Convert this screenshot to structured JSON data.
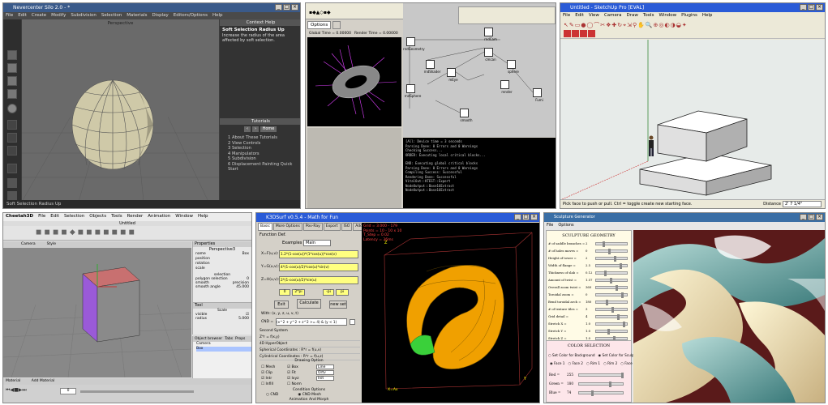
{
  "silo": {
    "title": "Nevercenter Silo 2.0 - *",
    "menu": [
      "File",
      "Edit",
      "Create",
      "Modify",
      "Subdivision",
      "Selection",
      "Materials",
      "Display",
      "Editors/Options",
      "Help"
    ],
    "viewport_label": "Perspective",
    "context_help_title": "Context Help",
    "context_help_heading": "Soft Selection Radius Up",
    "context_help_body": "Increase the radius of the area affected by soft selection.",
    "tutorials_title": "Tutorials",
    "home_button": "Home",
    "tutorials": [
      "1 About These Tutorials",
      "2 View Controls",
      "3 Selection",
      "4 Manipulators",
      "5 Subdivision",
      "6 Displacement Painting Quick Start"
    ],
    "status": "Soft Selection Radius Up"
  },
  "node": {
    "tab": "Options",
    "readout_1": "Global Time = 0.00000",
    "readout_2": "Render Time = 0.00000",
    "nodes": [
      "rndCam",
      "rndGeometry",
      "rndShader",
      "cmcan",
      "sphere",
      "rndSphere",
      "mEye",
      "render",
      "smooth",
      "Fumi"
    ],
    "console": [
      "[All: Device time = 3 seconds",
      "Parsing Done: 0 Errors and 0 Warnings",
      "Checking Success...",
      "ORDER: Executing local critical blocks...",
      "",
      "END: Executing global critical blocks",
      "Parsing Done: 0 Errors and 0 Warnings",
      "Compiling Success: Successful",
      "Rendering Done: Successful",
      "VitalOut::KTEST::Export",
      "NodeOutput::Base16Extract",
      "NodeOutput::Base16Extract"
    ]
  },
  "sketchup": {
    "title": "Untitled - SketchUp Pro [EVAL]",
    "menu": [
      "File",
      "Edit",
      "View",
      "Camera",
      "Draw",
      "Tools",
      "Window",
      "Plugins",
      "Help"
    ],
    "status": "Pick face to push or pull.  Ctrl = toggle create new starting face.",
    "distance_label": "Distance",
    "distance_value": "2' 7 1/4\""
  },
  "cheetah": {
    "menu": [
      "Cheetah3D",
      "File",
      "Edit",
      "Selection",
      "Objects",
      "Tools",
      "Render",
      "Animation",
      "Window",
      "Help"
    ],
    "doc_title": "Untitled",
    "toolbar_labels": [
      "Camera",
      "Style"
    ],
    "properties_title": "Properties",
    "object_name": "Perspective3",
    "props": [
      [
        "name",
        "Box"
      ],
      [
        "position",
        ""
      ],
      [
        "rotation",
        ""
      ],
      [
        "scale",
        ""
      ]
    ],
    "selection_title": "selection",
    "polygon_selection_label": "polygon selection",
    "polygon_selection_value": "0",
    "smooth_label": "smooth",
    "smooth_value": "precision",
    "smooth_angle_label": "smooth angle",
    "smooth_angle_value": "45.000",
    "tool_title": "Tool",
    "tool_name": "Scale",
    "visible_label": "visible",
    "radius_label": "radius",
    "radius_value": "5.000",
    "browser_tabs": [
      "Object browser",
      "Tabs",
      "Props"
    ],
    "objects": [
      "Camera",
      "Box"
    ],
    "material_bar": [
      "Material",
      "Add Material"
    ],
    "frame": "0"
  },
  "k3d": {
    "title": "K3DSurf v0.5.4 - Math for Fun",
    "tabs": [
      "Basic",
      "More Options",
      "Pov-Ray",
      "Export",
      "ISO",
      "Add",
      "Tools"
    ],
    "function_def": "Function Def.",
    "examples_label": "Examples",
    "examples_value": "Main",
    "x_label": "X=F(u,v):",
    "x_expr": "1.2*(1-cos(u))*(1*cos(u))*cos(v)",
    "y_label": "Y=G(u,v):",
    "y_expr": "4*(1-cos(u)/2)*cos(u)*sin(v)",
    "z_label": "Z=H(u,v):",
    "z_expr": "2*(1-cos(u)/2)*sin(u)",
    "range_u_min": "0",
    "range_u_max": "2*pi",
    "range_v_min": "-pi",
    "range_v_max": "pi",
    "exit_button": "Exit",
    "calculate_button": "Calculate",
    "new_set_button": "new set",
    "with_label": "With: (x, y, z, u, v, t)",
    "cnd_label": "CND =",
    "cnd_expr": "(x^2 + y^2 + z^2 >= 4) & (y < 1)",
    "second_system": "Second System",
    "list": [
      "Z*r = f(x,y)",
      "4D HyperObject",
      "Spherical Coordinates : R*r = f(u,v)",
      "Cylindrical Coordinates : R*r = f(u,z)"
    ],
    "drawing_options": "Drawing Option",
    "options_col1": [
      "Mesh",
      "Clip",
      "Intr",
      "Infill"
    ],
    "options_col2": [
      "Box",
      "Fit",
      "Ixyz",
      "Norm"
    ],
    "option_selects": [
      "Line",
      "Ortv",
      "Init"
    ],
    "condition_options": "Condition Options",
    "cnd_radio_1": "CND",
    "cnd_radio_2": "CND Mesh",
    "anim_options": "Animation And Morph",
    "anim_1": "Anim/Rotations",
    "anim_2": "Morph (use \"t\")",
    "overlay": [
      "Grid = 3.000 - 179",
      "Points = 10 - 10 x 10",
      "T_Step = 0.02",
      "Latency = 36ms"
    ],
    "axis_z": "Z",
    "axis_x": "X=Ax",
    "axis_y": "Y"
  },
  "sculpture": {
    "title": "Sculpture Generator",
    "menu": [
      "File",
      "Options"
    ],
    "heading": "SCULPTURE GEOMETRY",
    "params": [
      [
        "# of saddle branches =",
        "2"
      ],
      [
        "# of holes moves =",
        "0"
      ],
      [
        "Height of tower =",
        "2"
      ],
      [
        "Width of flange =",
        "2.5"
      ],
      [
        "Thickness of slab =",
        "0.12"
      ],
      [
        "Amount of twist =",
        "1.57"
      ],
      [
        "Overall zoom twist =",
        "360"
      ],
      [
        "Toroidal zoom =",
        "0"
      ],
      [
        "Bend toroidal arch =",
        "180"
      ],
      [
        "# of texture tiles =",
        "3"
      ],
      [
        "Grid detail =",
        "4"
      ],
      [
        "Stretch X =",
        "1.0"
      ],
      [
        "Stretch Y =",
        "1.0"
      ],
      [
        "Stretch Z =",
        "1.0"
      ]
    ],
    "color_heading": "COLOR SELECTION",
    "color_mode_1": "Set Color for Background",
    "color_mode_2": "Set Color for Sculpture",
    "color_targets": [
      "Face 1",
      "Face 2",
      "Rim 1",
      "Rim 2",
      "Face 3"
    ],
    "rgb": [
      [
        "Red =",
        "255"
      ],
      [
        "Green =",
        "180"
      ],
      [
        "Blue =",
        "74"
      ]
    ]
  }
}
